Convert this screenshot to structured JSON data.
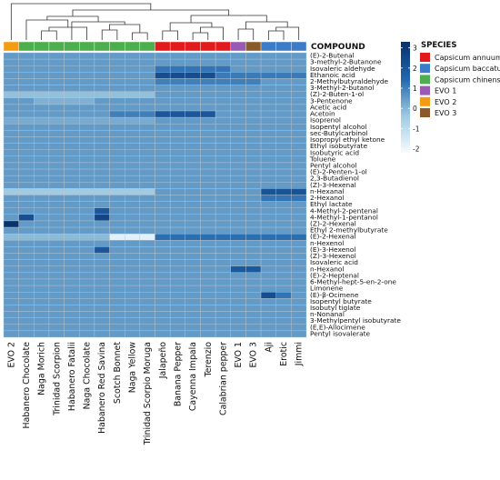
{
  "chart_data": {
    "type": "heatmap",
    "title": "",
    "column_annotation_label": "COMPOUND",
    "legend_title": "SPECIES",
    "legend": [
      {
        "name": "Capsicum annuum",
        "color": "#e31a1c"
      },
      {
        "name": "Capsicum baccatum",
        "color": "#3b7bc8"
      },
      {
        "name": "Capsicum chinense",
        "color": "#4cae4c"
      },
      {
        "name": "EVO 1",
        "color": "#9b59b6"
      },
      {
        "name": "EVO 2",
        "color": "#f39c12"
      },
      {
        "name": "EVO 3",
        "color": "#8b5a2b"
      }
    ],
    "colorbar": {
      "ticks": [
        3,
        2,
        1,
        0,
        -1,
        -2
      ],
      "range": [
        -2.2,
        3.3
      ],
      "stops": [
        "#f7fbff",
        "#9ecae1",
        "#2166ac",
        "#08306b"
      ]
    },
    "columns": [
      "EVO 2",
      "Habanero Chocolate",
      "Naga Morich",
      "Trinidad Scorpion",
      "Habanero Fatalii",
      "Naga Chocolate",
      "Habanero Red Savina",
      "Scotch Bonnet",
      "Naga Yellow",
      "Trinidad Scorpio Moruga",
      "Jalapeño",
      "Banana Pepper",
      "Cayenna Impala",
      "Terenzio",
      "Calabrian pepper",
      "EVO 1",
      "EVO 3",
      "Aji",
      "Erotic",
      "Jimmi"
    ],
    "column_species": [
      "EVO 2",
      "Capsicum chinense",
      "Capsicum chinense",
      "Capsicum chinense",
      "Capsicum chinense",
      "Capsicum chinense",
      "Capsicum chinense",
      "Capsicum chinense",
      "Capsicum chinense",
      "Capsicum chinense",
      "Capsicum annuum",
      "Capsicum annuum",
      "Capsicum annuum",
      "Capsicum annuum",
      "Capsicum annuum",
      "EVO 1",
      "EVO 3",
      "Capsicum baccatum",
      "Capsicum baccatum",
      "Capsicum baccatum"
    ],
    "rows": [
      "(E)-2-Butenal",
      "3-methyl-2-Butanone",
      "Isovaleric aldehyde",
      "Ethanoic acid",
      "2-Methylbutyraldehyde",
      "3-Methyl-2-butanol",
      "(Z)-2-Buten-1-ol",
      "3-Pentenone",
      "Acetic acid",
      "Acetoin",
      "Isoprenol",
      "Isopentyl alcohol",
      "sec-Butylcarbinol",
      "Isopropyl ethyl ketone",
      "Ethyl isobutyrate",
      "Isobutyric acid",
      "Toluene",
      "Pentyl alcohol",
      "(E)-2-Penten-1-ol",
      "2,3-Butadienol",
      "(Z)-3-Hexenal",
      "n-Hexanal",
      "2-Hexanol",
      "Ethyl lactate",
      "4-Methyl-2-pentenal",
      "4-Methyl-1-pentanol",
      "(Z)-2-Hexenal",
      "Ethyl 2-methylbutyrate",
      "(E)-2-Hexenal",
      "n-Hexenol",
      "(E)-3-Hexenol",
      "(Z)-3-Hexenol",
      "Isovaleric acid",
      "n-Hexanol",
      "(E)-2-Heptenal",
      "6-Methyl-hept-5-en-2-one",
      "Limonene",
      "(E)-β-Ocimene",
      "Isopentyl butyrate",
      "Isobutyl tiglate",
      "n-Nonanal",
      "3-Methylpentyl isobutyrate",
      "(E,E)-Allocimene",
      "Pentyl isovalerate"
    ],
    "baseline": 0.5,
    "values_sparse": [
      {
        "row": 2,
        "cols": [
          10,
          11,
          12,
          13,
          14
        ],
        "value": 1.2
      },
      {
        "row": 3,
        "cols": [
          10,
          11,
          12,
          13
        ],
        "value": 2.3
      },
      {
        "row": 3,
        "cols": [
          14,
          15,
          16,
          17,
          18,
          19
        ],
        "value": 1.1
      },
      {
        "row": 4,
        "cols": [
          10,
          11,
          12,
          13,
          14,
          15,
          16
        ],
        "value": 1.0
      },
      {
        "row": 6,
        "cols": [
          0,
          1,
          2,
          3,
          4,
          5,
          6,
          7,
          8,
          9
        ],
        "value": -0.2
      },
      {
        "row": 7,
        "cols": [
          2,
          3,
          4,
          5
        ],
        "value": 0.1
      },
      {
        "row": 9,
        "cols": [
          10,
          11,
          12,
          13
        ],
        "value": 2.0
      },
      {
        "row": 9,
        "cols": [
          7,
          8,
          9
        ],
        "value": 1.0
      },
      {
        "row": 10,
        "cols": [
          0,
          1,
          2,
          3,
          4,
          5,
          6,
          7,
          8,
          9
        ],
        "value": 0.2
      },
      {
        "row": 21,
        "cols": [
          17,
          18,
          19
        ],
        "value": 2.1
      },
      {
        "row": 21,
        "cols": [
          0,
          1,
          2,
          3,
          4,
          5,
          6,
          7,
          8,
          9
        ],
        "value": -0.4
      },
      {
        "row": 22,
        "cols": [
          17,
          18,
          19
        ],
        "value": 1.2
      },
      {
        "row": 24,
        "cols": [
          6
        ],
        "value": 2.0
      },
      {
        "row": 25,
        "cols": [
          1
        ],
        "value": 2.2
      },
      {
        "row": 25,
        "cols": [
          6
        ],
        "value": 2.6
      },
      {
        "row": 26,
        "cols": [
          0
        ],
        "value": 3.2
      },
      {
        "row": 28,
        "cols": [
          7,
          8,
          9
        ],
        "value": -1.8
      },
      {
        "row": 28,
        "cols": [
          0,
          1,
          2,
          3,
          4,
          5,
          6
        ],
        "value": -0.1
      },
      {
        "row": 28,
        "cols": [
          10,
          11,
          12,
          13,
          14,
          15,
          16,
          17,
          18,
          19
        ],
        "value": 1.3
      },
      {
        "row": 30,
        "cols": [
          6
        ],
        "value": 2.0
      },
      {
        "row": 33,
        "cols": [
          15,
          16
        ],
        "value": 1.9
      },
      {
        "row": 37,
        "cols": [
          17
        ],
        "value": 2.3
      },
      {
        "row": 37,
        "cols": [
          18
        ],
        "value": 1.2
      }
    ]
  }
}
